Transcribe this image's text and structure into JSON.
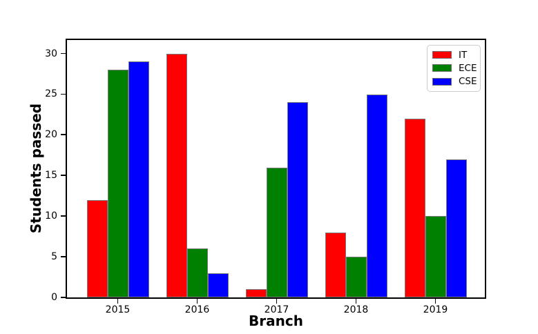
{
  "figure": {
    "background": "#ffffff",
    "xlabel": "Branch",
    "ylabel": "Students passed"
  },
  "chart_data": {
    "type": "bar",
    "title": "",
    "xlabel": "Branch",
    "ylabel": "Students passed",
    "categories": [
      "2015",
      "2016",
      "2017",
      "2018",
      "2019"
    ],
    "series": [
      {
        "name": "IT",
        "color": "#ff0000",
        "values": [
          12,
          30,
          1,
          8,
          22
        ]
      },
      {
        "name": "ECE",
        "color": "#008000",
        "values": [
          28,
          6,
          16,
          5,
          10
        ]
      },
      {
        "name": "CSE",
        "color": "#0000ff",
        "values": [
          29,
          3,
          24,
          25,
          17
        ]
      }
    ],
    "yticks": [
      0,
      5,
      10,
      15,
      20,
      25,
      30
    ],
    "ylim": [
      0,
      31.66
    ],
    "grid": false,
    "bar_edge_color": "#7a7a7a",
    "legend": {
      "position": "upper right",
      "entries": [
        "IT",
        "ECE",
        "CSE"
      ]
    }
  }
}
